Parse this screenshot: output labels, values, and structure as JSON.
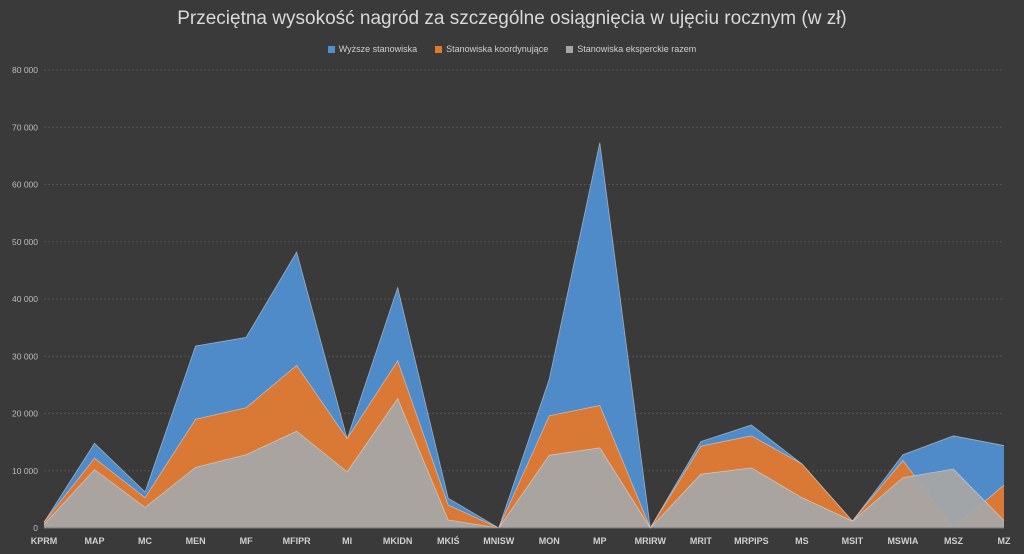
{
  "chart_data": {
    "type": "area",
    "title": "Przeciętna wysokość nagród za szczególne osiągnięcia w ujęciu rocznym (w zł)",
    "categories": [
      "KPRM",
      "MAP",
      "MC",
      "MEN",
      "MF",
      "MFIPR",
      "MI",
      "MKIDN",
      "MKIŚ",
      "MNISW",
      "MON",
      "MP",
      "MRIRW",
      "MRIT",
      "MRPIPS",
      "MS",
      "MSIT",
      "MSWIA",
      "MSZ",
      "MZ"
    ],
    "series": [
      {
        "name": "Wyższe stanowiska",
        "color": "#4f8fd0",
        "values": [
          1000,
          14800,
          6300,
          31800,
          33300,
          48200,
          15600,
          42000,
          5200,
          0,
          26000,
          67300,
          0,
          15100,
          18000,
          11200,
          1200,
          12800,
          16100,
          14400
        ]
      },
      {
        "name": "Stanowiska koordynujące",
        "color": "#e2782e",
        "values": [
          1000,
          12200,
          5300,
          19000,
          21000,
          28400,
          15600,
          29200,
          4000,
          0,
          19600,
          21400,
          0,
          14300,
          16100,
          11200,
          1200,
          11800,
          0,
          7500
        ]
      },
      {
        "name": "Stanowiska eksperckie razem",
        "color": "#a6a6a6",
        "values": [
          600,
          10200,
          3600,
          10600,
          12800,
          16900,
          9800,
          22600,
          1400,
          0,
          12700,
          14000,
          0,
          9400,
          10500,
          5300,
          1200,
          8800,
          10300,
          1300
        ]
      }
    ],
    "ylim": [
      0,
      80000
    ],
    "yticks": [
      0,
      10000,
      20000,
      30000,
      40000,
      50000,
      60000,
      70000,
      80000
    ],
    "ytick_labels": [
      "0",
      "10 000",
      "20 000",
      "30 000",
      "40 000",
      "50 000",
      "60 000",
      "70 000",
      "80 000"
    ],
    "legend_position": "top",
    "grid": true
  }
}
